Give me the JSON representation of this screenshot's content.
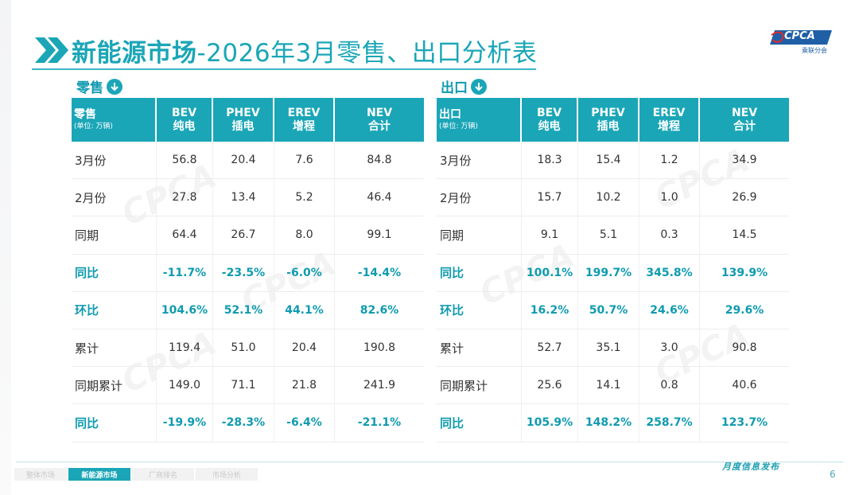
{
  "title": {
    "bold": "新能源市场",
    "rest": "-2026年3月零售、出口分析表"
  },
  "logo": {
    "badge": "CPCA",
    "sub": "乘联分会",
    "brand_colors": [
      "#1f5fa6",
      "#e02b2b"
    ]
  },
  "colors": {
    "accent": "#1aa6b7",
    "highlight_text": "#0f9bb0"
  },
  "retail": {
    "section_label": "零售",
    "header": {
      "title": "零售",
      "unit": "(单位: 万辆)"
    },
    "columns": [
      {
        "en": "BEV",
        "cn": "纯电"
      },
      {
        "en": "PHEV",
        "cn": "插电"
      },
      {
        "en": "EREV",
        "cn": "增程"
      },
      {
        "en": "NEV",
        "cn": "合计"
      }
    ],
    "rows": [
      {
        "label": "3月份",
        "values": [
          "56.8",
          "20.4",
          "7.6",
          "84.8"
        ],
        "highlight": false
      },
      {
        "label": "2月份",
        "values": [
          "27.8",
          "13.4",
          "5.2",
          "46.4"
        ],
        "highlight": false
      },
      {
        "label": "同期",
        "values": [
          "64.4",
          "26.7",
          "8.0",
          "99.1"
        ],
        "highlight": false
      },
      {
        "label": "同比",
        "values": [
          "-11.7%",
          "-23.5%",
          "-6.0%",
          "-14.4%"
        ],
        "highlight": true
      },
      {
        "label": "环比",
        "values": [
          "104.6%",
          "52.1%",
          "44.1%",
          "82.6%"
        ],
        "highlight": true
      },
      {
        "label": "累计",
        "values": [
          "119.4",
          "51.0",
          "20.4",
          "190.8"
        ],
        "highlight": false
      },
      {
        "label": "同期累计",
        "values": [
          "149.0",
          "71.1",
          "21.8",
          "241.9"
        ],
        "highlight": false
      },
      {
        "label": "同比",
        "values": [
          "-19.9%",
          "-28.3%",
          "-6.4%",
          "-21.1%"
        ],
        "highlight": true
      }
    ]
  },
  "export": {
    "section_label": "出口",
    "header": {
      "title": "出口",
      "unit": "(单位: 万辆)"
    },
    "columns": [
      {
        "en": "BEV",
        "cn": "纯电"
      },
      {
        "en": "PHEV",
        "cn": "插电"
      },
      {
        "en": "EREV",
        "cn": "增程"
      },
      {
        "en": "NEV",
        "cn": "合计"
      }
    ],
    "rows": [
      {
        "label": "3月份",
        "values": [
          "18.3",
          "15.4",
          "1.2",
          "34.9"
        ],
        "highlight": false
      },
      {
        "label": "2月份",
        "values": [
          "15.7",
          "10.2",
          "1.0",
          "26.9"
        ],
        "highlight": false
      },
      {
        "label": "同期",
        "values": [
          "9.1",
          "5.1",
          "0.3",
          "14.5"
        ],
        "highlight": false
      },
      {
        "label": "同比",
        "values": [
          "100.1%",
          "199.7%",
          "345.8%",
          "139.9%"
        ],
        "highlight": true
      },
      {
        "label": "环比",
        "values": [
          "16.2%",
          "50.7%",
          "24.6%",
          "29.6%"
        ],
        "highlight": true
      },
      {
        "label": "累计",
        "values": [
          "52.7",
          "35.1",
          "3.0",
          "90.8"
        ],
        "highlight": false
      },
      {
        "label": "同期累计",
        "values": [
          "25.6",
          "14.1",
          "0.8",
          "40.6"
        ],
        "highlight": false
      },
      {
        "label": "同比",
        "values": [
          "105.9%",
          "148.2%",
          "258.7%",
          "123.7%"
        ],
        "highlight": true
      }
    ]
  },
  "footer": {
    "publish_label": "月度信息发布",
    "tabs": [
      {
        "label": "整体市场",
        "active": false
      },
      {
        "label": "新能源市场",
        "active": true
      },
      {
        "label": "厂商排名",
        "active": false
      },
      {
        "label": "市场分析",
        "active": false
      }
    ],
    "page_number": "6"
  }
}
